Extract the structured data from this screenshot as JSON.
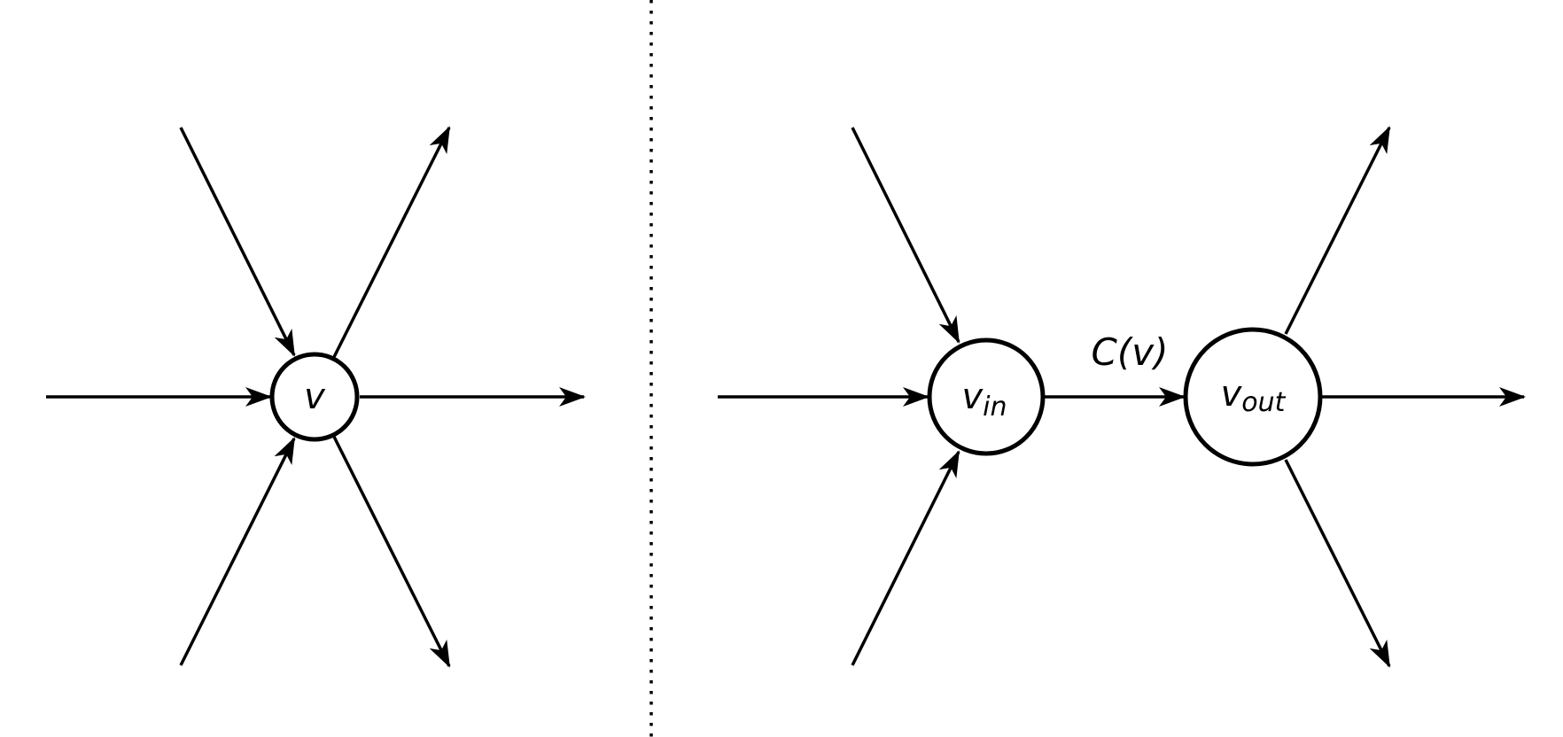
{
  "colors": {
    "stroke": "#000000",
    "background": "#ffffff"
  },
  "left_panel": {
    "node": {
      "main": "v"
    }
  },
  "right_panel": {
    "node_in": {
      "main": "v",
      "sub": "in"
    },
    "node_out": {
      "main": "v",
      "sub": "out"
    },
    "split_edge": {
      "label": "C(v)"
    }
  }
}
